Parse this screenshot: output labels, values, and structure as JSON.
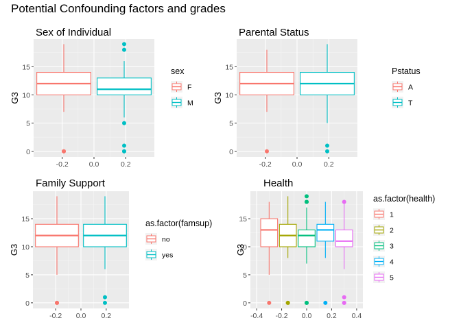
{
  "figure_title": "Potential Confounding factors and grades",
  "colors": {
    "panel_bg": "#EBEBEB",
    "grid_major": "#FFFFFF",
    "grid_minor": "#F5F5F5",
    "tick_text": "#4D4D4D",
    "palette2": [
      "#F8766D",
      "#00BFC4"
    ],
    "palette5": [
      "#F8766D",
      "#A3A500",
      "#00BF7D",
      "#00B0F6",
      "#E76BF3"
    ]
  },
  "chart_data": [
    {
      "type": "boxplot",
      "title": "Sex of Individual",
      "xlabel": "",
      "ylabel": "G3",
      "xlim": [
        -0.38,
        0.38
      ],
      "xticks": [
        -0.2,
        0.0,
        0.2
      ],
      "xtick_labels": [
        "-0.2",
        "0.0",
        "0.2"
      ],
      "ylim": [
        -1,
        19.9
      ],
      "yticks": [
        0,
        5,
        10,
        15
      ],
      "yminor": [
        2.5,
        7.5,
        12.5,
        17.5
      ],
      "legend": {
        "title": "sex",
        "entries": [
          "F",
          "M"
        ],
        "position": "right"
      },
      "series": [
        {
          "name": "F",
          "x": -0.19,
          "width": 0.34,
          "q1": 10,
          "median": 12,
          "q3": 14,
          "whisker_low": 7,
          "whisker_high": 19,
          "outliers": [
            0,
            0
          ]
        },
        {
          "name": "M",
          "x": 0.19,
          "width": 0.34,
          "q1": 10,
          "median": 11,
          "q3": 13,
          "whisker_low": 6,
          "whisker_high": 16,
          "outliers": [
            0,
            0,
            1,
            5,
            18,
            19
          ]
        }
      ]
    },
    {
      "type": "boxplot",
      "title": "Parental Status",
      "xlabel": "",
      "ylabel": "G3",
      "xlim": [
        -0.38,
        0.38
      ],
      "xticks": [
        -0.2,
        0.0,
        0.2
      ],
      "xtick_labels": [
        "-0.2",
        "0.0",
        "0.2"
      ],
      "ylim": [
        -1,
        19.9
      ],
      "yticks": [
        0,
        5,
        10,
        15
      ],
      "yminor": [
        2.5,
        7.5,
        12.5,
        17.5
      ],
      "legend": {
        "title": "Pstatus",
        "entries": [
          "A",
          "T"
        ],
        "position": "right"
      },
      "series": [
        {
          "name": "A",
          "x": -0.19,
          "width": 0.34,
          "q1": 10,
          "median": 12,
          "q3": 14,
          "whisker_low": 7,
          "whisker_high": 18,
          "outliers": [
            0
          ]
        },
        {
          "name": "T",
          "x": 0.19,
          "width": 0.34,
          "q1": 10,
          "median": 12,
          "q3": 14,
          "whisker_low": 5,
          "whisker_high": 19,
          "outliers": [
            0,
            1
          ]
        }
      ]
    },
    {
      "type": "boxplot",
      "title": "Family Support",
      "xlabel": "",
      "ylabel": "G3",
      "xlim": [
        -0.38,
        0.38
      ],
      "xticks": [
        -0.2,
        0.0,
        0.2
      ],
      "xtick_labels": [
        "-0.2",
        "0.0",
        "0.2"
      ],
      "ylim": [
        -1,
        19.9
      ],
      "yticks": [
        0,
        5,
        10,
        15
      ],
      "yminor": [
        2.5,
        7.5,
        12.5,
        17.5
      ],
      "legend": {
        "title": "as.factor(famsup)",
        "entries": [
          "no",
          "yes"
        ],
        "position": "right"
      },
      "series": [
        {
          "name": "no",
          "x": -0.19,
          "width": 0.34,
          "q1": 10,
          "median": 12,
          "q3": 14,
          "whisker_low": 5,
          "whisker_high": 19,
          "outliers": [
            0,
            0
          ]
        },
        {
          "name": "yes",
          "x": 0.19,
          "width": 0.34,
          "q1": 10,
          "median": 12,
          "q3": 14,
          "whisker_low": 6,
          "whisker_high": 19,
          "outliers": [
            0,
            1
          ]
        }
      ]
    },
    {
      "type": "boxplot",
      "title": "Health",
      "xlabel": "",
      "ylabel": "G3",
      "xlim": [
        -0.45,
        0.45
      ],
      "xticks": [
        -0.4,
        -0.2,
        0.0,
        0.2,
        0.4
      ],
      "xtick_labels": [
        "-0.4",
        "-0.2",
        "0.0",
        "0.2",
        "0.4"
      ],
      "ylim": [
        -1,
        19.9
      ],
      "yticks": [
        0,
        5,
        10,
        15
      ],
      "yminor": [
        2.5,
        7.5,
        12.5,
        17.5
      ],
      "legend": {
        "title": "as.factor(health)",
        "entries": [
          "1",
          "2",
          "3",
          "4",
          "5"
        ],
        "position": "right"
      },
      "series": [
        {
          "name": "1",
          "x": -0.3,
          "width": 0.135,
          "q1": 10,
          "median": 13,
          "q3": 15,
          "whisker_low": 5,
          "whisker_high": 18,
          "outliers": [
            0
          ]
        },
        {
          "name": "2",
          "x": -0.15,
          "width": 0.135,
          "q1": 10,
          "median": 12,
          "q3": 14,
          "whisker_low": 8,
          "whisker_high": 19,
          "outliers": [
            0,
            0
          ]
        },
        {
          "name": "3",
          "x": 0.0,
          "width": 0.135,
          "q1": 10,
          "median": 12,
          "q3": 13,
          "whisker_low": 7,
          "whisker_high": 17,
          "outliers": [
            0,
            0,
            18,
            18,
            19
          ]
        },
        {
          "name": "4",
          "x": 0.15,
          "width": 0.135,
          "q1": 11,
          "median": 13,
          "q3": 14,
          "whisker_low": 8,
          "whisker_high": 18,
          "outliers": [
            0
          ]
        },
        {
          "name": "5",
          "x": 0.3,
          "width": 0.135,
          "q1": 10,
          "median": 11,
          "q3": 13,
          "whisker_low": 6,
          "whisker_high": 18,
          "outliers": [
            0,
            0,
            1,
            18
          ]
        }
      ]
    }
  ]
}
